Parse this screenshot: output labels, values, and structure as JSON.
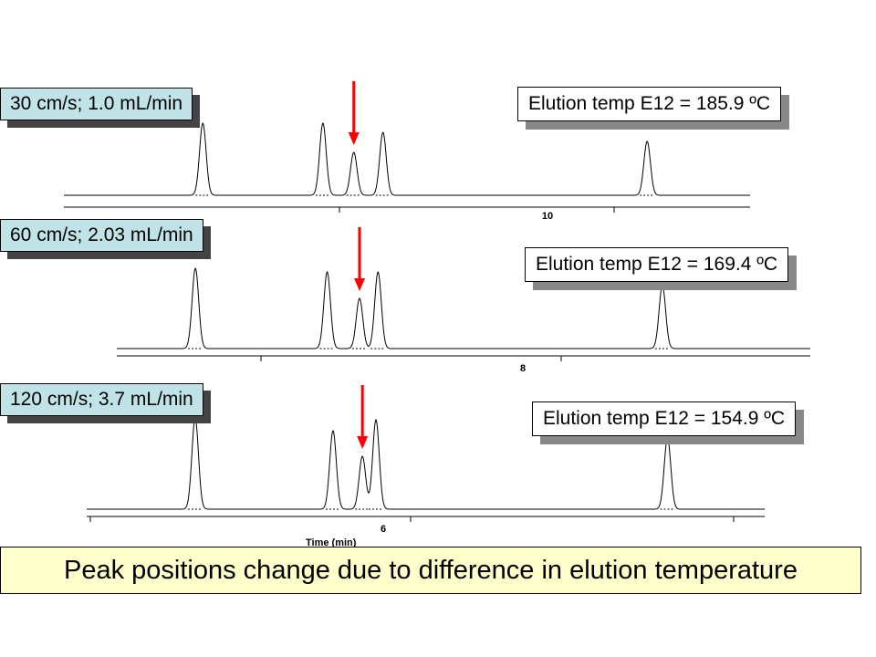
{
  "banner": "Peak positions change due to difference in elution temperature",
  "colors": {
    "condition_box": "#bfe3e6",
    "arrow": "#ff0000",
    "banner": "#ffffcc"
  },
  "chart_data": [
    {
      "type": "line",
      "condition": "30 cm/s; 1.0 mL/min",
      "annotation": "Elution temp E12 = 185.9 ºC",
      "xlabel": "",
      "xlim": [
        7.2,
        11.2
      ],
      "tick_labels": [
        "10"
      ],
      "tick_values": [
        10
      ],
      "peaks": [
        {
          "t": 8.01,
          "h": 79
        },
        {
          "t": 8.71,
          "h": 79
        },
        {
          "t": 8.89,
          "h": 47,
          "marked": true
        },
        {
          "t": 9.06,
          "h": 69
        },
        {
          "t": 10.6,
          "h": 59
        }
      ]
    },
    {
      "type": "line",
      "condition": "60 cm/s; 2.03 mL/min",
      "annotation": "Elution temp E12 = 169.4 ºC",
      "xlabel": "",
      "xlim": [
        6.25,
        9.25
      ],
      "tick_labels": [
        "8"
      ],
      "tick_values": [
        8
      ],
      "peaks": [
        {
          "t": 6.59,
          "h": 88
        },
        {
          "t": 7.16,
          "h": 84
        },
        {
          "t": 7.3,
          "h": 55,
          "marked": true
        },
        {
          "t": 7.38,
          "h": 84
        },
        {
          "t": 8.61,
          "h": 69
        }
      ]
    },
    {
      "type": "line",
      "condition": "120 cm/s; 3.7 mL/min",
      "annotation": "Elution temp E12 = 154.9 ºC",
      "xlabel": "Time (min)",
      "xlim": [
        4.7,
        7.7
      ],
      "tick_labels": [
        "6"
      ],
      "tick_values": [
        6
      ],
      "peaks": [
        {
          "t": 5.18,
          "h": 100
        },
        {
          "t": 5.79,
          "h": 86
        },
        {
          "t": 5.92,
          "h": 58,
          "marked": true
        },
        {
          "t": 5.98,
          "h": 98
        },
        {
          "t": 7.27,
          "h": 78
        }
      ]
    }
  ]
}
